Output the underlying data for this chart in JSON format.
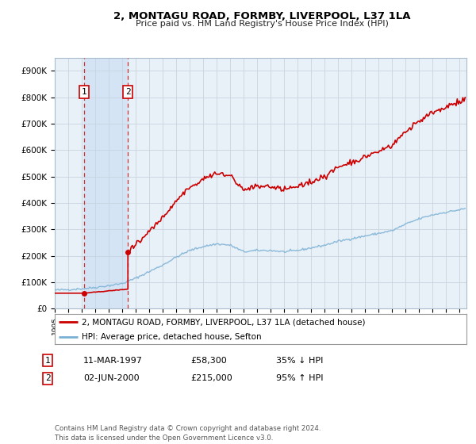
{
  "title": "2, MONTAGU ROAD, FORMBY, LIVERPOOL, L37 1LA",
  "subtitle": "Price paid vs. HM Land Registry's House Price Index (HPI)",
  "ylabel_ticks": [
    "£0",
    "£100K",
    "£200K",
    "£300K",
    "£400K",
    "£500K",
    "£600K",
    "£700K",
    "£800K",
    "£900K"
  ],
  "ytick_vals": [
    0,
    100000,
    200000,
    300000,
    400000,
    500000,
    600000,
    700000,
    800000,
    900000
  ],
  "ylim": [
    0,
    950000
  ],
  "xlim_start": 1995.0,
  "xlim_end": 2025.5,
  "sale1_date": 1997.19,
  "sale1_price": 58300,
  "sale2_date": 2000.42,
  "sale2_price": 215000,
  "sale1_label": "1",
  "sale2_label": "2",
  "legend_line1": "2, MONTAGU ROAD, FORMBY, LIVERPOOL, L37 1LA (detached house)",
  "legend_line2": "HPI: Average price, detached house, Sefton",
  "table_row1_num": "1",
  "table_row1_date": "11-MAR-1997",
  "table_row1_price": "£58,300",
  "table_row1_hpi": "35% ↓ HPI",
  "table_row2_num": "2",
  "table_row2_date": "02-JUN-2000",
  "table_row2_price": "£215,000",
  "table_row2_hpi": "95% ↑ HPI",
  "footer": "Contains HM Land Registry data © Crown copyright and database right 2024.\nThis data is licensed under the Open Government Licence v3.0.",
  "line_color_red": "#cc0000",
  "line_color_blue": "#7ab0d4",
  "bg_color": "#e8f0f8",
  "shade_between_color": "#d4e4f4",
  "grid_color": "#c8d4e0",
  "sale_marker_color": "#cc0000",
  "dashed_line_color": "#cc3333"
}
